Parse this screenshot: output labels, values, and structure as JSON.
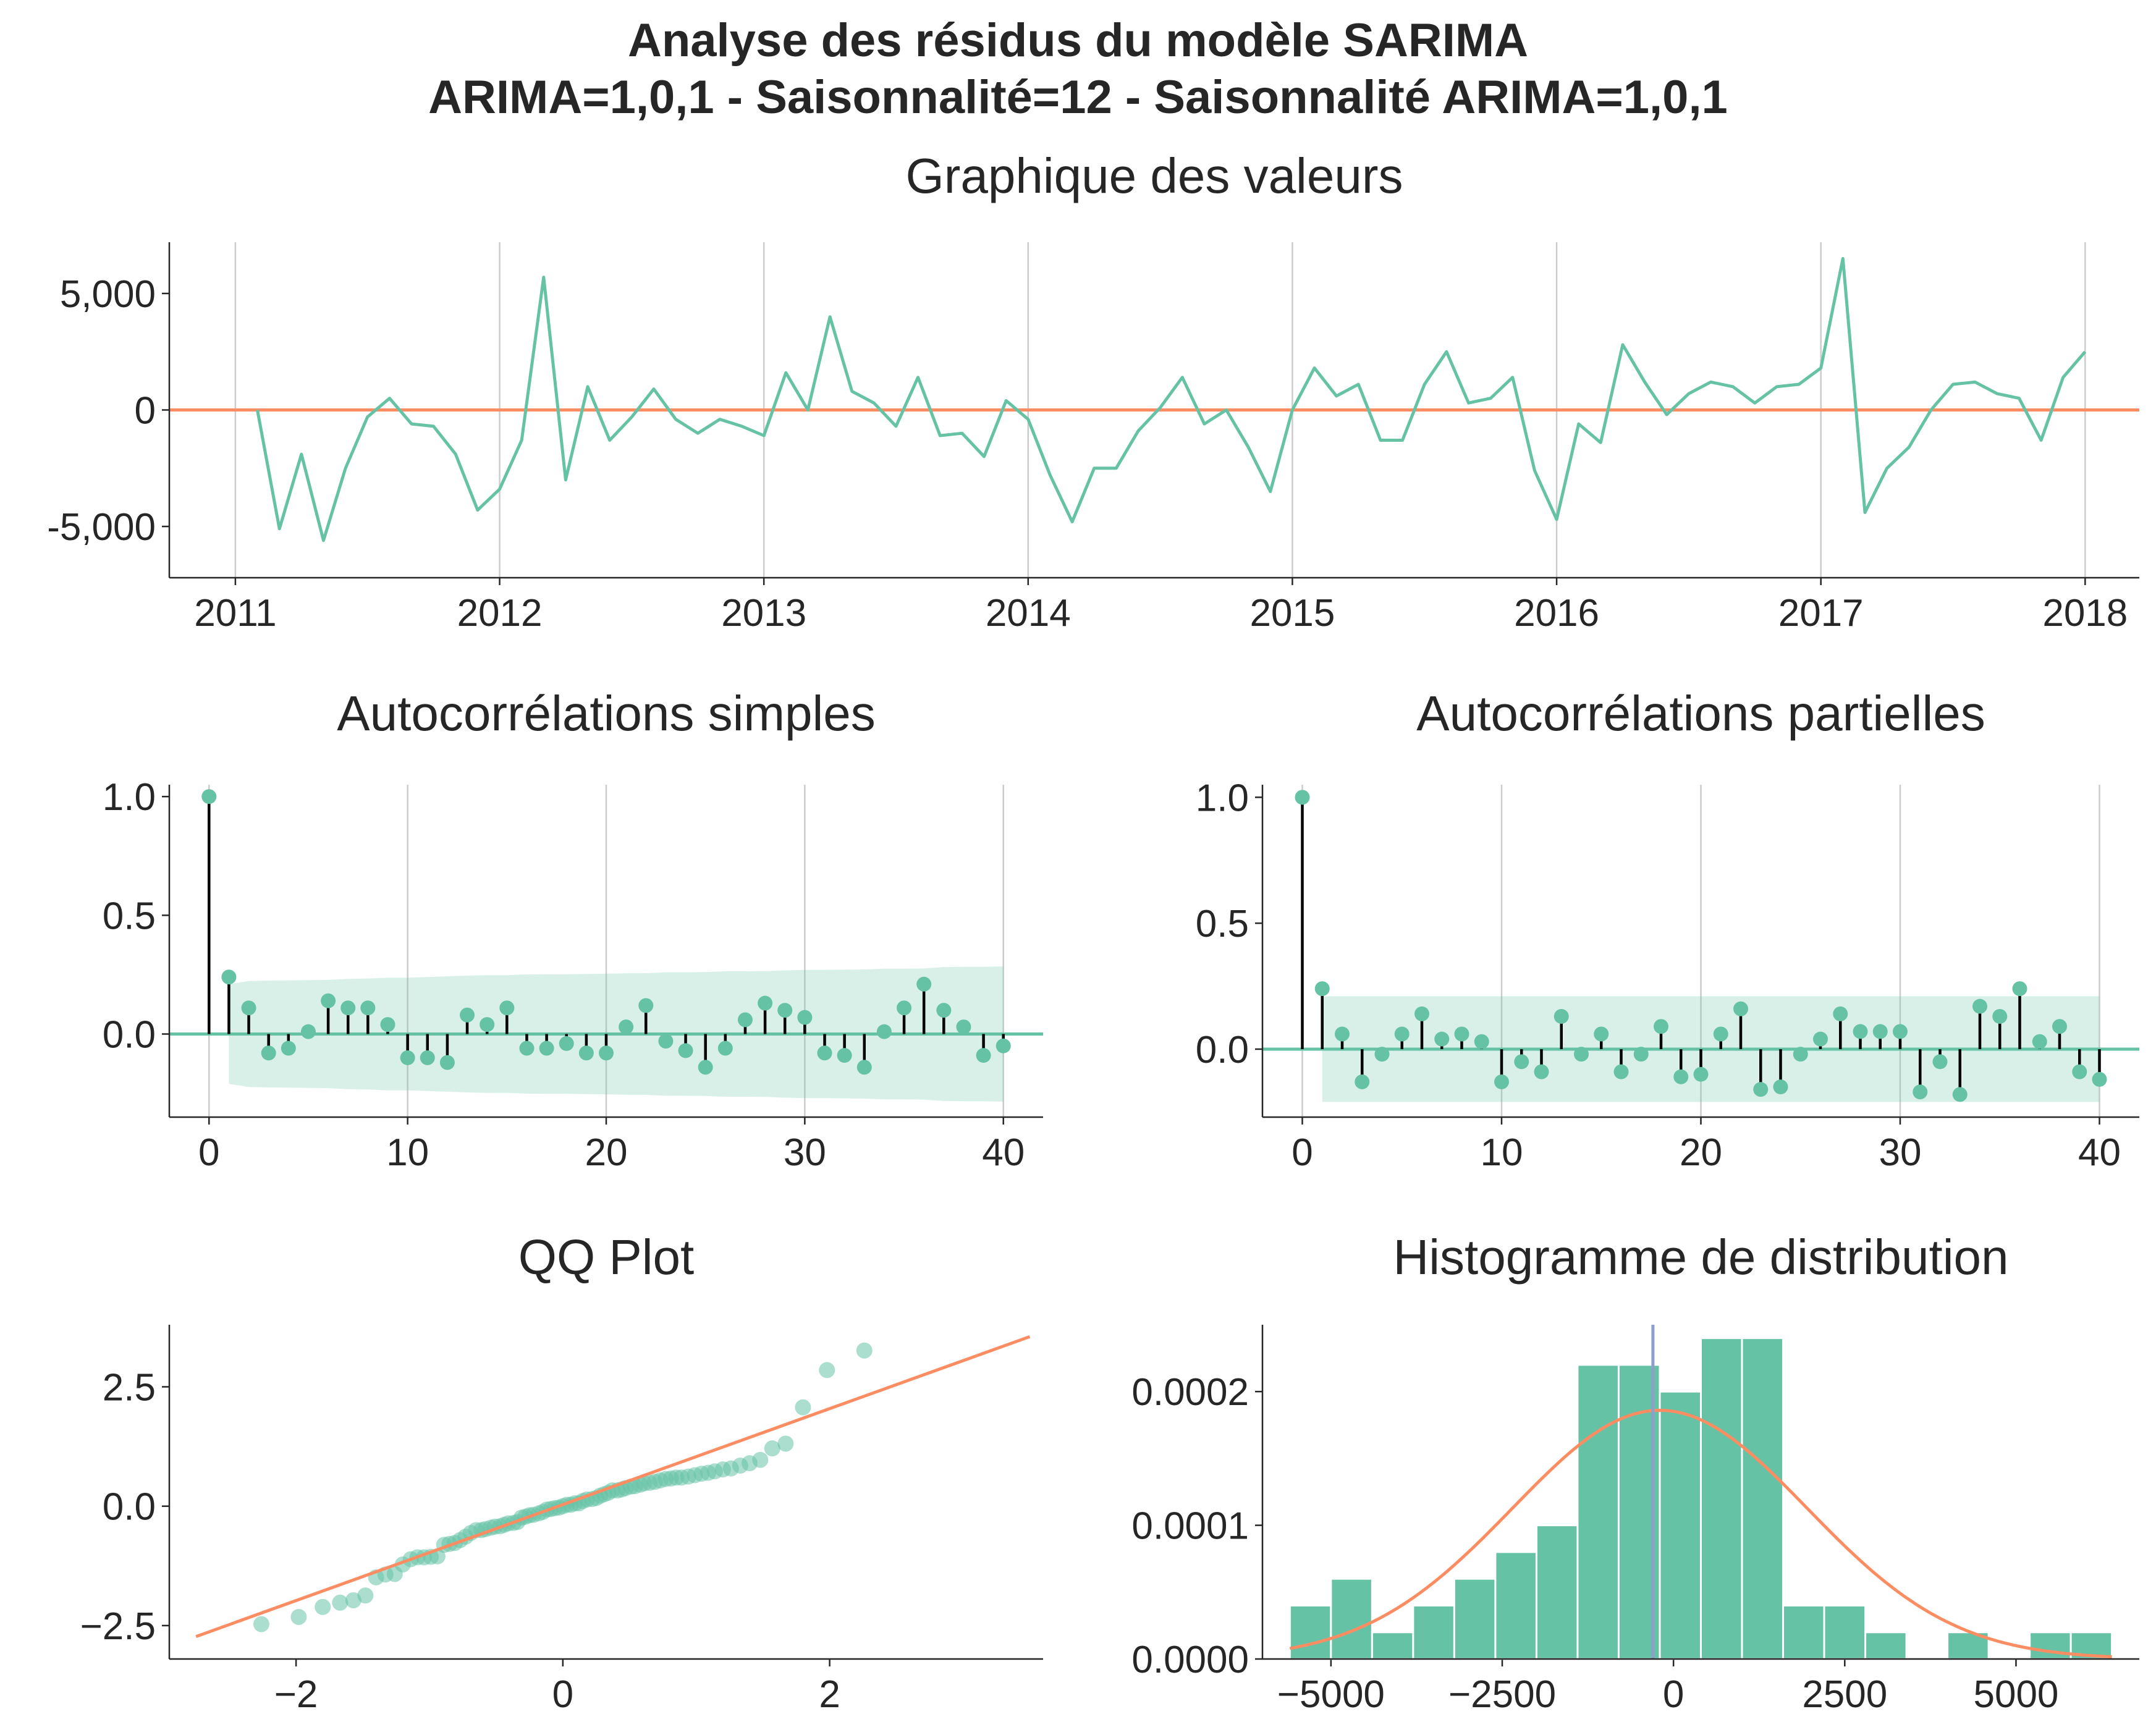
{
  "suptitle": {
    "line1": "Analyse des résidus du modèle SARIMA",
    "line2": "ARIMA=1,0,1 - Saisonnalité=12 - Saisonnalité ARIMA=1,0,1"
  },
  "colors": {
    "series": "#66c2a5",
    "reference": "#fc8d62",
    "mean_line": "#8da0cb",
    "stem": "#000000",
    "grid": "#cccccc",
    "axis": "#262626"
  },
  "chart_data": [
    {
      "id": "values",
      "type": "line",
      "title": "Graphique des valeurs",
      "x_start": "2011-02",
      "x_tick_labels": [
        "2011",
        "2012",
        "2013",
        "2014",
        "2015",
        "2016",
        "2017",
        "2018"
      ],
      "xlim": [
        "2010-10-01",
        "2018-03-15"
      ],
      "y_tick_values": [
        -5000,
        0,
        5000
      ],
      "y_tick_labels": [
        "-5,000",
        "0",
        "5,000"
      ],
      "ylim": [
        -7200,
        7200
      ],
      "grid": "x",
      "reference_line": 0,
      "values": [
        0,
        -5100,
        -1900,
        -5600,
        -2500,
        -300,
        500,
        -600,
        -700,
        -1900,
        -4300,
        -3400,
        -1300,
        5700,
        -3000,
        1000,
        -1300,
        -300,
        900,
        -400,
        -1000,
        -400,
        -700,
        -1100,
        1600,
        0,
        4000,
        800,
        300,
        -700,
        1400,
        -1100,
        -1000,
        -2000,
        400,
        -400,
        -2800,
        -4800,
        -2500,
        -2500,
        -900,
        100,
        1400,
        -600,
        0,
        -1600,
        -3500,
        0,
        1800,
        600,
        1100,
        -1300,
        -1300,
        1100,
        2500,
        300,
        500,
        1400,
        -2600,
        -4700,
        -600,
        -1400,
        2800,
        1200,
        -200,
        700,
        1200,
        1000,
        300,
        1000,
        1100,
        1800,
        6500,
        -4400,
        -2500,
        -1600,
        0,
        1100,
        1200,
        700,
        500,
        -1300,
        1400,
        2500
      ]
    },
    {
      "id": "acf",
      "type": "stem",
      "title": "Autocorrélations simples",
      "x": [
        0,
        1,
        2,
        3,
        4,
        5,
        6,
        7,
        8,
        9,
        10,
        11,
        12,
        13,
        14,
        15,
        16,
        17,
        18,
        19,
        20,
        21,
        22,
        23,
        24,
        25,
        26,
        27,
        28,
        29,
        30,
        31,
        32,
        33,
        34,
        35,
        36,
        37,
        38,
        39,
        40
      ],
      "values": [
        1.0,
        0.24,
        0.11,
        -0.08,
        -0.06,
        0.01,
        0.14,
        0.11,
        0.11,
        0.04,
        -0.1,
        -0.1,
        -0.12,
        0.08,
        0.04,
        0.11,
        -0.06,
        -0.06,
        -0.04,
        -0.08,
        -0.08,
        0.03,
        0.12,
        -0.03,
        -0.07,
        -0.14,
        -0.06,
        0.06,
        0.13,
        0.1,
        0.07,
        -0.08,
        -0.09,
        -0.14,
        0.01,
        0.11,
        0.21,
        0.1,
        0.03,
        -0.09,
        -0.05
      ],
      "confidence_band": {
        "x": [
          1,
          2,
          3,
          4,
          5,
          6,
          7,
          8,
          9,
          10,
          11,
          12,
          13,
          14,
          15,
          16,
          17,
          18,
          19,
          20,
          21,
          22,
          23,
          24,
          25,
          26,
          27,
          28,
          29,
          30,
          31,
          32,
          33,
          34,
          35,
          36,
          37,
          38,
          39,
          40
        ],
        "upper": [
          0.21,
          0.223,
          0.225,
          0.226,
          0.227,
          0.228,
          0.232,
          0.234,
          0.237,
          0.237,
          0.24,
          0.243,
          0.246,
          0.248,
          0.248,
          0.251,
          0.252,
          0.252,
          0.253,
          0.254,
          0.256,
          0.256,
          0.26,
          0.26,
          0.261,
          0.264,
          0.264,
          0.265,
          0.268,
          0.27,
          0.27,
          0.271,
          0.272,
          0.275,
          0.275,
          0.276,
          0.282,
          0.283,
          0.283,
          0.285
        ]
      },
      "x_ticks": [
        0,
        10,
        20,
        30,
        40
      ],
      "xlim": [
        -2,
        42
      ],
      "y_ticks": [
        0.0,
        0.5,
        1.0
      ],
      "y_tick_labels": [
        "0.0",
        "0.5",
        "1.0"
      ],
      "ylim": [
        -0.35,
        1.05
      ],
      "grid": "x"
    },
    {
      "id": "pacf",
      "type": "stem",
      "title": "Autocorrélations partielles",
      "x": [
        0,
        1,
        2,
        3,
        4,
        5,
        6,
        7,
        8,
        9,
        10,
        11,
        12,
        13,
        14,
        15,
        16,
        17,
        18,
        19,
        20,
        21,
        22,
        23,
        24,
        25,
        26,
        27,
        28,
        29,
        30,
        31,
        32,
        33,
        34,
        35,
        36,
        37,
        38,
        39,
        40
      ],
      "values": [
        1.0,
        0.24,
        0.06,
        -0.13,
        -0.02,
        0.06,
        0.14,
        0.04,
        0.06,
        0.03,
        -0.13,
        -0.05,
        -0.09,
        0.13,
        -0.02,
        0.06,
        -0.09,
        -0.02,
        0.09,
        -0.11,
        -0.1,
        0.06,
        0.16,
        -0.16,
        -0.15,
        -0.02,
        0.04,
        0.14,
        0.07,
        0.07,
        0.07,
        -0.17,
        -0.05,
        -0.18,
        0.17,
        0.13,
        0.24,
        0.03,
        0.09,
        -0.09,
        -0.12
      ],
      "confidence_band": {
        "x": [
          1,
          40
        ],
        "upper": [
          0.21,
          0.21
        ]
      },
      "x_ticks": [
        0,
        10,
        20,
        30,
        40
      ],
      "xlim": [
        -2,
        42
      ],
      "y_ticks": [
        0.0,
        0.5,
        1.0
      ],
      "y_tick_labels": [
        "0.0",
        "0.5",
        "1.0"
      ],
      "ylim": [
        -0.27,
        1.05
      ],
      "grid": "x"
    },
    {
      "id": "qq",
      "type": "scatter",
      "title": "QQ Plot",
      "points": [
        [
          -2.26,
          -2.47
        ],
        [
          -1.98,
          -2.32
        ],
        [
          -1.8,
          -2.11
        ],
        [
          -1.67,
          -2.02
        ],
        [
          -1.57,
          -1.97
        ],
        [
          -1.48,
          -1.87
        ],
        [
          -1.4,
          -1.49
        ],
        [
          -1.33,
          -1.43
        ],
        [
          -1.26,
          -1.42
        ],
        [
          -1.2,
          -1.22
        ],
        [
          -1.14,
          -1.11
        ],
        [
          -1.09,
          -1.07
        ],
        [
          -1.04,
          -1.07
        ],
        [
          -0.99,
          -1.06
        ],
        [
          -0.94,
          -1.05
        ],
        [
          -0.89,
          -0.81
        ],
        [
          -0.85,
          -0.79
        ],
        [
          -0.81,
          -0.77
        ],
        [
          -0.77,
          -0.71
        ],
        [
          -0.73,
          -0.64
        ],
        [
          -0.69,
          -0.56
        ],
        [
          -0.65,
          -0.5
        ],
        [
          -0.61,
          -0.5
        ],
        [
          -0.58,
          -0.48
        ],
        [
          -0.54,
          -0.45
        ],
        [
          -0.51,
          -0.43
        ],
        [
          -0.47,
          -0.42
        ],
        [
          -0.44,
          -0.39
        ],
        [
          -0.41,
          -0.36
        ],
        [
          -0.37,
          -0.35
        ],
        [
          -0.34,
          -0.33
        ],
        [
          -0.31,
          -0.24
        ],
        [
          -0.28,
          -0.22
        ],
        [
          -0.25,
          -0.19
        ],
        [
          -0.22,
          -0.18
        ],
        [
          -0.18,
          -0.15
        ],
        [
          -0.15,
          -0.12
        ],
        [
          -0.12,
          -0.07
        ],
        [
          -0.09,
          -0.06
        ],
        [
          -0.06,
          -0.04
        ],
        [
          -0.03,
          -0.03
        ],
        [
          0.0,
          0.0
        ],
        [
          0.03,
          0.03
        ],
        [
          0.06,
          0.03
        ],
        [
          0.09,
          0.06
        ],
        [
          0.12,
          0.06
        ],
        [
          0.15,
          0.11
        ],
        [
          0.18,
          0.14
        ],
        [
          0.22,
          0.15
        ],
        [
          0.25,
          0.17
        ],
        [
          0.28,
          0.22
        ],
        [
          0.31,
          0.25
        ],
        [
          0.34,
          0.28
        ],
        [
          0.37,
          0.33
        ],
        [
          0.41,
          0.33
        ],
        [
          0.44,
          0.35
        ],
        [
          0.47,
          0.38
        ],
        [
          0.51,
          0.41
        ],
        [
          0.54,
          0.42
        ],
        [
          0.58,
          0.45
        ],
        [
          0.61,
          0.48
        ],
        [
          0.65,
          0.49
        ],
        [
          0.69,
          0.51
        ],
        [
          0.73,
          0.54
        ],
        [
          0.77,
          0.57
        ],
        [
          0.81,
          0.58
        ],
        [
          0.85,
          0.6
        ],
        [
          0.89,
          0.6
        ],
        [
          0.94,
          0.62
        ],
        [
          0.99,
          0.65
        ],
        [
          1.04,
          0.68
        ],
        [
          1.09,
          0.7
        ],
        [
          1.14,
          0.73
        ],
        [
          1.2,
          0.77
        ],
        [
          1.26,
          0.79
        ],
        [
          1.33,
          0.85
        ],
        [
          1.4,
          0.9
        ],
        [
          1.48,
          0.97
        ],
        [
          1.57,
          1.21
        ],
        [
          1.67,
          1.31
        ],
        [
          1.8,
          2.07
        ],
        [
          1.98,
          2.85
        ],
        [
          2.26,
          3.26
        ]
      ],
      "reference_line": {
        "x": [
          -2.75,
          3.5
        ],
        "y": [
          -2.73,
          3.55
        ]
      },
      "x_ticks": [
        -2,
        0,
        2
      ],
      "x_tick_labels": [
        "−2",
        "0",
        "2"
      ],
      "xlim": [
        -2.95,
        3.6
      ],
      "y_ticks": [
        -2.5,
        0.0,
        2.5
      ],
      "y_tick_labels": [
        "−2.5",
        "0.0",
        "2.5"
      ],
      "ylim": [
        -3.2,
        3.8
      ],
      "grid": "none"
    },
    {
      "id": "histogram",
      "type": "bar",
      "title": "Histogramme de distribution",
      "bin_edges": [
        -5600,
        -5000,
        -4400,
        -3800,
        -3200,
        -2600,
        -2000,
        -1400,
        -800,
        -200,
        400,
        1000,
        1600,
        2200,
        2800,
        3400,
        4000,
        4600,
        5200,
        5800,
        6400
      ],
      "values": [
        4e-05,
        6e-05,
        2e-05,
        4e-05,
        6e-05,
        8e-05,
        0.0001,
        0.00022,
        0.00022,
        0.0002,
        0.00024,
        0.00024,
        4e-05,
        4e-05,
        2e-05,
        0,
        2e-05,
        0,
        2e-05,
        2e-05
      ],
      "normal_curve": {
        "mean": -200,
        "std": 2150,
        "peak": 0.000186
      },
      "mean_line": -300,
      "x_ticks": [
        -5000,
        -2500,
        0,
        2500,
        5000
      ],
      "x_tick_labels": [
        "−5000",
        "−2500",
        "0",
        "2500",
        "5000"
      ],
      "xlim": [
        -6000,
        6800
      ],
      "y_ticks": [
        0,
        0.0001,
        0.0002
      ],
      "y_tick_labels": [
        "0.0000",
        "0.0001",
        "0.0002"
      ],
      "ylim": [
        0,
        0.00025
      ],
      "grid": "none"
    }
  ]
}
